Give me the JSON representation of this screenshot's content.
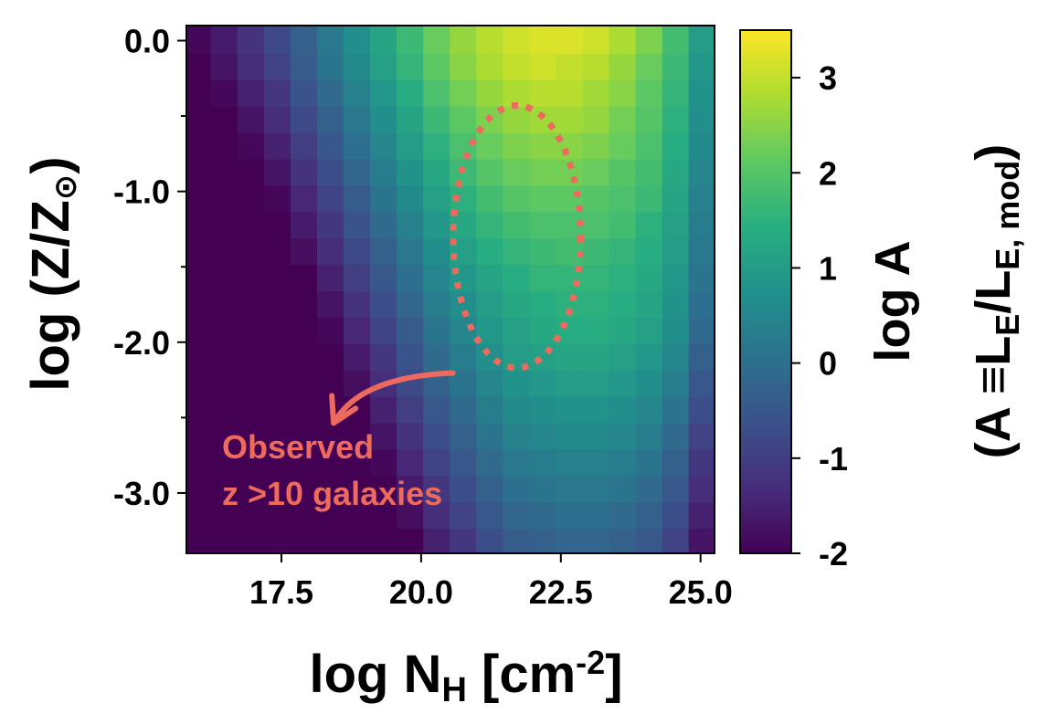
{
  "chart_data": {
    "type": "heatmap",
    "xlabel": {
      "main": "log N",
      "sub": "H",
      "mid": " [cm",
      "sup": "-2",
      "end": "]"
    },
    "ylabel": {
      "main": "log (Z/Z",
      "sun": "⊙",
      "end": ")"
    },
    "colorbar_label": {
      "line1": "log A",
      "line2_a": "(A ≡L",
      "line2_sub1": "E",
      "line2_b": "/L",
      "line2_sub2": "E, mod",
      "line2_c": ")"
    },
    "x_ticks": [
      {
        "value": 17.5,
        "label": "17.5"
      },
      {
        "value": 20.0,
        "label": "20.0"
      },
      {
        "value": 22.5,
        "label": "22.5"
      },
      {
        "value": 25.0,
        "label": "25.0"
      }
    ],
    "y_ticks": [
      {
        "value": 0.0,
        "label": "0.0"
      },
      {
        "value": -1.0,
        "label": "-1.0"
      },
      {
        "value": -2.0,
        "label": "-2.0"
      },
      {
        "value": -3.0,
        "label": "-3.0"
      }
    ],
    "y_minor_ticks": [
      -0.5,
      -1.5,
      -2.5
    ],
    "colorbar_ticks": [
      {
        "value": 3,
        "label": "3"
      },
      {
        "value": 2,
        "label": "2"
      },
      {
        "value": 1,
        "label": "1"
      },
      {
        "value": 0,
        "label": "0"
      },
      {
        "value": -1,
        "label": "-1"
      },
      {
        "value": -2,
        "label": "-2"
      }
    ],
    "xlim": [
      15.8,
      25.25
    ],
    "ylim": [
      -3.4,
      0.1
    ],
    "clim": [
      -2.0,
      3.5
    ],
    "colormap": "viridis",
    "grid": {
      "x_start": 16.0,
      "x_step": 0.475,
      "nx": 20,
      "y_top": 0.0,
      "y_step": -0.175,
      "ny": 20
    },
    "values": [
      [
        -1.9,
        -1.6,
        -1.2,
        -0.8,
        -0.3,
        0.2,
        0.7,
        1.2,
        1.7,
        2.2,
        2.6,
        2.9,
        3.1,
        3.2,
        3.2,
        3.1,
        2.8,
        2.4,
        1.8,
        1.0
      ],
      [
        -2.0,
        -1.7,
        -1.3,
        -0.9,
        -0.4,
        0.1,
        0.6,
        1.1,
        1.6,
        2.1,
        2.5,
        2.8,
        3.0,
        3.1,
        3.0,
        2.9,
        2.6,
        2.2,
        1.7,
        0.9
      ],
      [
        -2.0,
        -1.9,
        -1.5,
        -1.1,
        -0.6,
        -0.1,
        0.4,
        0.9,
        1.4,
        1.9,
        2.3,
        2.6,
        2.8,
        2.9,
        2.9,
        2.7,
        2.5,
        2.1,
        1.6,
        0.8
      ],
      [
        -2.0,
        -2.0,
        -1.7,
        -1.3,
        -0.8,
        -0.3,
        0.2,
        0.7,
        1.2,
        1.7,
        2.1,
        2.4,
        2.6,
        2.7,
        2.7,
        2.6,
        2.3,
        2.0,
        1.5,
        0.7
      ],
      [
        -2.0,
        -2.0,
        -1.9,
        -1.5,
        -1.0,
        -0.5,
        0.0,
        0.5,
        1.0,
        1.5,
        1.9,
        2.2,
        2.4,
        2.5,
        2.5,
        2.4,
        2.2,
        1.9,
        1.4,
        0.6
      ],
      [
        -2.0,
        -2.0,
        -2.0,
        -1.7,
        -1.2,
        -0.7,
        -0.2,
        0.3,
        0.8,
        1.3,
        1.7,
        2.0,
        2.2,
        2.3,
        2.3,
        2.2,
        2.0,
        1.8,
        1.3,
        0.5
      ],
      [
        -2.0,
        -2.0,
        -2.0,
        -1.9,
        -1.4,
        -0.9,
        -0.4,
        0.1,
        0.6,
        1.1,
        1.5,
        1.8,
        2.0,
        2.1,
        2.1,
        2.0,
        1.9,
        1.7,
        1.2,
        0.4
      ],
      [
        -2.0,
        -2.0,
        -2.0,
        -2.0,
        -1.6,
        -1.1,
        -0.6,
        -0.1,
        0.4,
        0.9,
        1.3,
        1.6,
        1.8,
        1.9,
        1.9,
        1.9,
        1.8,
        1.5,
        1.1,
        0.3
      ],
      [
        -2.0,
        -2.0,
        -2.0,
        -2.0,
        -1.8,
        -1.3,
        -0.8,
        -0.3,
        0.2,
        0.7,
        1.1,
        1.4,
        1.6,
        1.7,
        1.8,
        1.7,
        1.6,
        1.4,
        1.0,
        0.2
      ],
      [
        -2.0,
        -2.0,
        -2.0,
        -2.0,
        -2.0,
        -1.5,
        -1.0,
        -0.5,
        0.0,
        0.5,
        0.9,
        1.2,
        1.4,
        1.6,
        1.6,
        1.6,
        1.5,
        1.3,
        0.9,
        0.1
      ],
      [
        -2.0,
        -2.0,
        -2.0,
        -2.0,
        -2.0,
        -1.7,
        -1.2,
        -0.7,
        -0.2,
        0.3,
        0.7,
        1.0,
        1.3,
        1.4,
        1.5,
        1.5,
        1.4,
        1.2,
        0.8,
        0.0
      ],
      [
        -2.0,
        -2.0,
        -2.0,
        -2.0,
        -2.0,
        -1.9,
        -1.4,
        -0.9,
        -0.4,
        0.1,
        0.5,
        0.9,
        1.1,
        1.3,
        1.4,
        1.4,
        1.3,
        1.1,
        0.7,
        -0.1
      ],
      [
        -2.0,
        -2.0,
        -2.0,
        -2.0,
        -2.0,
        -2.0,
        -1.6,
        -1.1,
        -0.6,
        -0.1,
        0.3,
        0.7,
        1.0,
        1.1,
        1.2,
        1.2,
        1.1,
        0.9,
        0.5,
        -0.3
      ],
      [
        -2.0,
        -2.0,
        -2.0,
        -2.0,
        -2.0,
        -2.0,
        -1.8,
        -1.3,
        -0.8,
        -0.3,
        0.1,
        0.5,
        0.8,
        0.9,
        1.0,
        1.0,
        0.9,
        0.7,
        0.3,
        -0.5
      ],
      [
        -2.0,
        -2.0,
        -2.0,
        -2.0,
        -2.0,
        -2.0,
        -2.0,
        -1.5,
        -1.0,
        -0.5,
        -0.1,
        0.3,
        0.6,
        0.7,
        0.8,
        0.8,
        0.7,
        0.5,
        0.1,
        -0.7
      ],
      [
        -2.0,
        -2.0,
        -2.0,
        -2.0,
        -2.0,
        -2.0,
        -2.0,
        -1.7,
        -1.2,
        -0.7,
        -0.3,
        0.1,
        0.4,
        0.5,
        0.6,
        0.6,
        0.5,
        0.3,
        -0.1,
        -0.9
      ],
      [
        -2.0,
        -2.0,
        -2.0,
        -2.0,
        -2.0,
        -2.0,
        -2.0,
        -1.9,
        -1.4,
        -0.9,
        -0.5,
        -0.1,
        0.2,
        0.3,
        0.4,
        0.4,
        0.3,
        0.1,
        -0.3,
        -1.1
      ],
      [
        -2.0,
        -2.0,
        -2.0,
        -2.0,
        -2.0,
        -2.0,
        -2.0,
        -2.0,
        -1.6,
        -1.1,
        -0.7,
        -0.3,
        0.0,
        0.1,
        0.2,
        0.2,
        0.1,
        -0.1,
        -0.5,
        -1.3
      ],
      [
        -2.0,
        -2.0,
        -2.0,
        -2.0,
        -2.0,
        -2.0,
        -2.0,
        -2.0,
        -1.8,
        -1.3,
        -0.9,
        -0.5,
        -0.2,
        -0.1,
        0.0,
        0.0,
        -0.1,
        -0.3,
        -0.7,
        -1.5
      ],
      [
        -2.0,
        -2.0,
        -2.0,
        -2.0,
        -2.0,
        -2.0,
        -2.0,
        -2.0,
        -2.0,
        -1.5,
        -1.1,
        -0.7,
        -0.4,
        -0.3,
        -0.2,
        -0.2,
        -0.3,
        -0.5,
        -0.9,
        -1.7
      ]
    ],
    "annotation": {
      "text_line1": "Observed",
      "text_line2": "z >10 galaxies",
      "color": "#ec6a5e",
      "ellipse_center": [
        22.5,
        -1.3
      ],
      "ellipse_radii": [
        1.9,
        0.87
      ],
      "arrow_from": [
        20.7,
        -1.95
      ],
      "arrow_to": [
        18.5,
        -2.5
      ]
    }
  }
}
